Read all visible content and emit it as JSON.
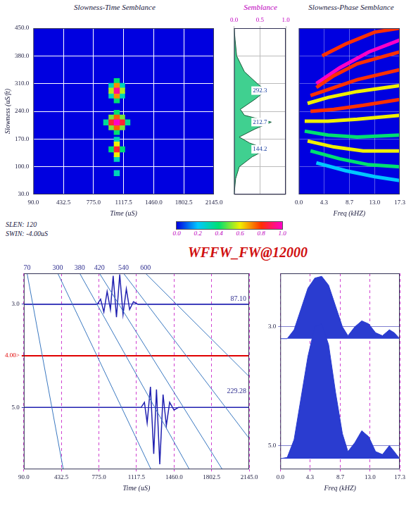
{
  "title": "WFFW_FW@12000",
  "chart_data": [
    {
      "type": "heatmap",
      "title": "Slowness-Time Semblance",
      "x_label": "Time (uS)",
      "y_label": "Slowness (uS/ft)",
      "xlim": [
        90,
        2145
      ],
      "xticks": [
        {
          "value": 90,
          "label": "90.0"
        },
        432.5,
        {
          "value": 775,
          "label": "775.0"
        },
        1117.5,
        {
          "value": 1460,
          "label": "1460.0"
        },
        1802.5,
        {
          "value": 2145,
          "label": "2145.0"
        }
      ],
      "ylim": [
        30,
        450
      ],
      "yticks": [
        {
          "value": 30,
          "label": "30.0"
        },
        {
          "value": 100,
          "label": "100.0"
        },
        {
          "value": 170,
          "label": "170.0"
        },
        {
          "value": 240,
          "label": "240.0"
        },
        {
          "value": 310,
          "label": "310.0"
        },
        {
          "value": 380,
          "label": "380.0"
        },
        {
          "value": 450,
          "label": "450.0"
        }
      ],
      "grid": true,
      "cells": [
        [
          980,
          304,
          0.3
        ],
        [
          980,
          280,
          0.3
        ],
        [
          1100,
          304,
          0.3
        ],
        [
          1100,
          280,
          0.3
        ],
        [
          1040,
          316,
          0.4
        ],
        [
          1040,
          268,
          0.4
        ],
        [
          980,
          292,
          0.55
        ],
        [
          1100,
          292,
          0.55
        ],
        [
          1040,
          304,
          0.7
        ],
        [
          1040,
          280,
          0.7
        ],
        [
          1040,
          292,
          0.95
        ],
        [
          920,
          212,
          0.35
        ],
        [
          1160,
          212,
          0.35
        ],
        [
          1040,
          236,
          0.4
        ],
        [
          1040,
          188,
          0.4
        ],
        [
          980,
          224,
          0.5
        ],
        [
          980,
          200,
          0.5
        ],
        [
          1100,
          224,
          0.5
        ],
        [
          1100,
          200,
          0.5
        ],
        [
          1040,
          224,
          0.75
        ],
        [
          1040,
          200,
          0.75
        ],
        [
          980,
          212,
          0.85
        ],
        [
          1100,
          212,
          0.85
        ],
        [
          1040,
          212,
          1.0
        ],
        [
          1040,
          168,
          0.3
        ],
        [
          1040,
          120,
          0.3
        ],
        [
          980,
          144,
          0.4
        ],
        [
          1100,
          144,
          0.4
        ],
        [
          1040,
          156,
          0.6
        ],
        [
          1040,
          132,
          0.6
        ],
        [
          1040,
          144,
          0.85
        ],
        [
          1040,
          84,
          0.3
        ]
      ],
      "colorbar": {
        "range": [
          0,
          1
        ],
        "ticks": [
          {
            "value": 0,
            "label": "0.0"
          },
          0.2,
          0.4,
          0.6,
          0.8,
          {
            "value": 1,
            "label": "1.0"
          }
        ],
        "colors": [
          "#0000e0",
          "#00c8ff",
          "#00e070",
          "#f0f000",
          "#ff3000",
          "#ff00c8"
        ]
      },
      "annotations": [
        "SLEN: 120",
        "SWIN: -4.00uS"
      ]
    },
    {
      "type": "area",
      "title": "Semblance",
      "xlim": [
        0,
        1
      ],
      "xticks": [
        {
          "value": 0,
          "label": "0.0"
        },
        0.5,
        {
          "value": 1,
          "label": "1.0"
        }
      ],
      "ylim": [
        30,
        450
      ],
      "yticks": [
        30,
        100,
        170,
        240,
        310,
        380,
        450
      ],
      "tick_labels": "x",
      "grid": true,
      "series": [
        {
          "color": "#40d090",
          "values": [
            [
              0,
              450
            ],
            [
              0.02,
              420
            ],
            [
              0.05,
              380
            ],
            [
              0.2,
              340
            ],
            [
              0.45,
              310
            ],
            [
              0.62,
              292.3
            ],
            [
              0.4,
              270
            ],
            [
              0.12,
              245
            ],
            [
              0.2,
              230
            ],
            [
              0.72,
              212.7
            ],
            [
              0.4,
              195
            ],
            [
              0.1,
              175
            ],
            [
              0.3,
              160
            ],
            [
              0.63,
              144.2
            ],
            [
              0.35,
              125
            ],
            [
              0.1,
              100
            ],
            [
              0.03,
              70
            ],
            [
              0,
              30
            ]
          ]
        }
      ],
      "peaks": [
        292.3,
        212.7,
        144.2
      ]
    },
    {
      "type": "line",
      "title": "Slowness-Phase Semblance",
      "x_label": "Freq (kHZ)",
      "xlim": [
        0,
        17.3
      ],
      "xticks": [
        {
          "value": 0,
          "label": "0.0"
        },
        4.3,
        8.7,
        {
          "value": 13,
          "label": "13.0"
        },
        17.3
      ],
      "ylim": [
        30,
        450
      ],
      "yticks": [
        30,
        100,
        170,
        240,
        310,
        380,
        450
      ],
      "tick_labels": "x",
      "grid": true,
      "series": [
        {
          "color": "#00c8ff",
          "values": [
            [
              3,
              110
            ],
            [
              8,
              90
            ],
            [
              13,
              75
            ],
            [
              17.3,
              65
            ]
          ]
        },
        {
          "color": "#00e070",
          "values": [
            [
              2,
              140
            ],
            [
              7,
              120
            ],
            [
              12,
              105
            ],
            [
              17.3,
              100
            ]
          ]
        },
        {
          "color": "#f0f000",
          "values": [
            [
              1.5,
              165
            ],
            [
              6,
              150
            ],
            [
              11,
              140
            ],
            [
              17.3,
              140
            ]
          ]
        },
        {
          "color": "#00e070",
          "values": [
            [
              1,
              190
            ],
            [
              5,
              180
            ],
            [
              10,
              175
            ],
            [
              17.3,
              180
            ]
          ]
        },
        {
          "color": "#f0f000",
          "values": [
            [
              1,
              215
            ],
            [
              5,
              215
            ],
            [
              10,
              220
            ],
            [
              17.3,
              230
            ]
          ]
        },
        {
          "color": "#ff3000",
          "values": [
            [
              2,
              240
            ],
            [
              6,
              245
            ],
            [
              11,
              255
            ],
            [
              17.3,
              270
            ]
          ]
        },
        {
          "color": "#f0f000",
          "values": [
            [
              1.5,
              260
            ],
            [
              5,
              275
            ],
            [
              10,
              290
            ],
            [
              17.3,
              305
            ]
          ]
        },
        {
          "color": "#ff3000",
          "values": [
            [
              2,
              280
            ],
            [
              6,
              300
            ],
            [
              10,
              320
            ],
            [
              17.3,
              345
            ]
          ]
        },
        {
          "color": "#ff3000",
          "values": [
            [
              3,
              300
            ],
            [
              6,
              330
            ],
            [
              10,
              360
            ],
            [
              17.3,
              390
            ]
          ]
        },
        {
          "color": "#ff00c8",
          "values": [
            [
              3,
              310
            ],
            [
              7,
              350
            ],
            [
              12,
              390
            ],
            [
              17.3,
              420
            ]
          ]
        },
        {
          "color": "#ff3000",
          "values": [
            [
              4,
              380
            ],
            [
              8,
              410
            ],
            [
              13,
              440
            ],
            [
              17.3,
              450
            ]
          ]
        }
      ]
    },
    {
      "type": "line",
      "x_label": "Time (uS)",
      "xlim": [
        90,
        2145
      ],
      "xticks": [
        {
          "value": 90,
          "label": "90.0"
        },
        432.5,
        {
          "value": 775,
          "label": "775.0"
        },
        1117.5,
        {
          "value": 1460,
          "label": "1460.0"
        },
        1802.5,
        {
          "value": 2145,
          "label": "2145.0"
        }
      ],
      "ylim": [
        2.4,
        6.2
      ],
      "yticks": [
        {
          "value": 3,
          "label": "3.0"
        },
        {
          "value": 4,
          "label": "4.00>"
        },
        {
          "value": 5,
          "label": "5.0"
        }
      ],
      "grid": true,
      "series": [
        {
          "color": "#2020b0",
          "values": [
            [
              90,
              3.0
            ],
            [
              760,
              3.0
            ],
            [
              790,
              2.9
            ],
            [
              820,
              3.15
            ],
            [
              850,
              2.75
            ],
            [
              880,
              3.1
            ],
            [
              905,
              2.45
            ],
            [
              935,
              3.25
            ],
            [
              965,
              2.42
            ],
            [
              995,
              3.2
            ],
            [
              1025,
              2.7
            ],
            [
              1055,
              3.1
            ],
            [
              1090,
              2.95
            ],
            [
              1130,
              3.0
            ],
            [
              2145,
              3.0
            ]
          ]
        },
        {
          "color": "#2020b0",
          "values": [
            [
              90,
              5.0
            ],
            [
              1160,
              5.0
            ],
            [
              1190,
              4.9
            ],
            [
              1215,
              5.3
            ],
            [
              1245,
              4.6
            ],
            [
              1275,
              5.9
            ],
            [
              1300,
              4.65
            ],
            [
              1330,
              6.1
            ],
            [
              1360,
              4.75
            ],
            [
              1390,
              5.35
            ],
            [
              1420,
              4.9
            ],
            [
              1460,
              5.05
            ],
            [
              1500,
              5.0
            ],
            [
              2145,
              5.0
            ]
          ]
        }
      ],
      "moveout_lines": [
        {
          "label": "70",
          "points": [
            [
              120,
              2.4
            ],
            [
              450,
              6.2
            ]
          ]
        },
        {
          "label": "300",
          "points": [
            [
              400,
              2.4
            ],
            [
              1250,
              6.2
            ]
          ]
        },
        {
          "label": "380",
          "points": [
            [
              600,
              2.4
            ],
            [
              1600,
              6.2
            ]
          ]
        },
        {
          "label": "420",
          "points": [
            [
              780,
              2.4
            ],
            [
              1900,
              6.2
            ]
          ]
        },
        {
          "label": "540",
          "points": [
            [
              1000,
              2.4
            ],
            [
              2145,
              5.6
            ]
          ]
        },
        {
          "label": "600",
          "points": [
            [
              1200,
              2.4
            ],
            [
              2145,
              4.4
            ]
          ]
        }
      ],
      "hlines": [
        {
          "y": 4,
          "color": "#e00000"
        }
      ],
      "annotations": [
        {
          "text": "87.10",
          "x": 2145,
          "y": 3.0
        },
        {
          "text": "229.28",
          "x": 2145,
          "y": 4.8
        }
      ]
    },
    {
      "type": "area",
      "x_label": "Freq (kHZ)",
      "xlim": [
        0,
        17.3
      ],
      "xticks": [
        {
          "value": 0,
          "label": "0.0"
        },
        4.3,
        8.7,
        {
          "value": 13,
          "label": "13.0"
        },
        17.3
      ],
      "ylim": [
        2.1,
        5.4
      ],
      "yticks": [
        {
          "value": 3,
          "label": "3.0"
        },
        {
          "value": 5,
          "label": "5.0"
        }
      ],
      "grid": true,
      "series": [
        {
          "color": "#2a3cd0",
          "values": [
            [
              0,
              3.2
            ],
            [
              1,
              3.2
            ],
            [
              2,
              3.05
            ],
            [
              3,
              2.7
            ],
            [
              4,
              2.35
            ],
            [
              5,
              2.18
            ],
            [
              6,
              2.15
            ],
            [
              7,
              2.3
            ],
            [
              8,
              2.65
            ],
            [
              9,
              3.0
            ],
            [
              9.8,
              3.15
            ],
            [
              10.8,
              3.0
            ],
            [
              11.8,
              2.9
            ],
            [
              12.8,
              2.95
            ],
            [
              13.8,
              3.1
            ],
            [
              14.8,
              3.15
            ],
            [
              15.8,
              3.05
            ],
            [
              16.5,
              3.1
            ],
            [
              17.3,
              3.2
            ]
          ]
        },
        {
          "color": "#2a3cd0",
          "values": [
            [
              0,
              5.22
            ],
            [
              1,
              5.2
            ],
            [
              2,
              4.9
            ],
            [
              3,
              4.2
            ],
            [
              4,
              3.5
            ],
            [
              5,
              3.0
            ],
            [
              6,
              2.95
            ],
            [
              7,
              3.3
            ],
            [
              8,
              4.1
            ],
            [
              9,
              4.8
            ],
            [
              9.8,
              5.1
            ],
            [
              10.8,
              4.95
            ],
            [
              11.8,
              4.75
            ],
            [
              12.8,
              4.85
            ],
            [
              13.8,
              5.1
            ],
            [
              14.8,
              5.15
            ],
            [
              15.8,
              5.0
            ],
            [
              16.5,
              5.1
            ],
            [
              17.3,
              5.22
            ]
          ]
        }
      ]
    }
  ]
}
